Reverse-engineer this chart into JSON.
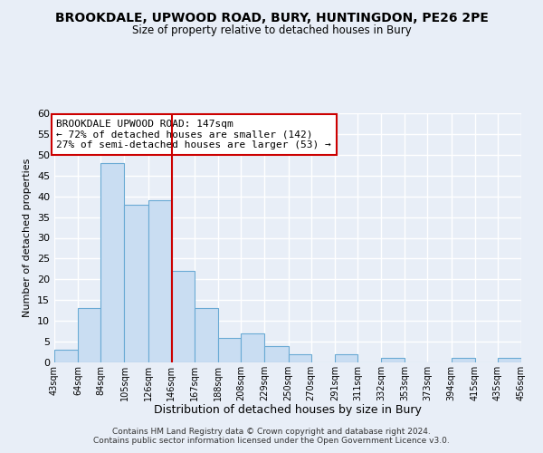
{
  "title": "BROOKDALE, UPWOOD ROAD, BURY, HUNTINGDON, PE26 2PE",
  "subtitle": "Size of property relative to detached houses in Bury",
  "xlabel": "Distribution of detached houses by size in Bury",
  "ylabel": "Number of detached properties",
  "bar_edges": [
    43,
    64,
    84,
    105,
    126,
    146,
    167,
    188,
    208,
    229,
    250,
    270,
    291,
    311,
    332,
    353,
    373,
    394,
    415,
    435,
    456
  ],
  "bar_heights": [
    3,
    13,
    48,
    38,
    39,
    22,
    13,
    6,
    7,
    4,
    2,
    0,
    2,
    0,
    1,
    0,
    0,
    1,
    0,
    1
  ],
  "tick_labels": [
    "43sqm",
    "64sqm",
    "84sqm",
    "105sqm",
    "126sqm",
    "146sqm",
    "167sqm",
    "188sqm",
    "208sqm",
    "229sqm",
    "250sqm",
    "270sqm",
    "291sqm",
    "311sqm",
    "332sqm",
    "353sqm",
    "373sqm",
    "394sqm",
    "415sqm",
    "435sqm",
    "456sqm"
  ],
  "bar_color": "#c9ddf2",
  "bar_edge_color": "#6aaad4",
  "vline_x": 147,
  "vline_color": "#cc0000",
  "annotation_title": "BROOKDALE UPWOOD ROAD: 147sqm",
  "annotation_line1": "← 72% of detached houses are smaller (142)",
  "annotation_line2": "27% of semi-detached houses are larger (53) →",
  "annotation_box_edge": "#cc0000",
  "ylim": [
    0,
    60
  ],
  "yticks": [
    0,
    5,
    10,
    15,
    20,
    25,
    30,
    35,
    40,
    45,
    50,
    55,
    60
  ],
  "footer1": "Contains HM Land Registry data © Crown copyright and database right 2024.",
  "footer2": "Contains public sector information licensed under the Open Government Licence v3.0.",
  "bg_color": "#e8eef7",
  "plot_bg_color": "#e8eef7"
}
